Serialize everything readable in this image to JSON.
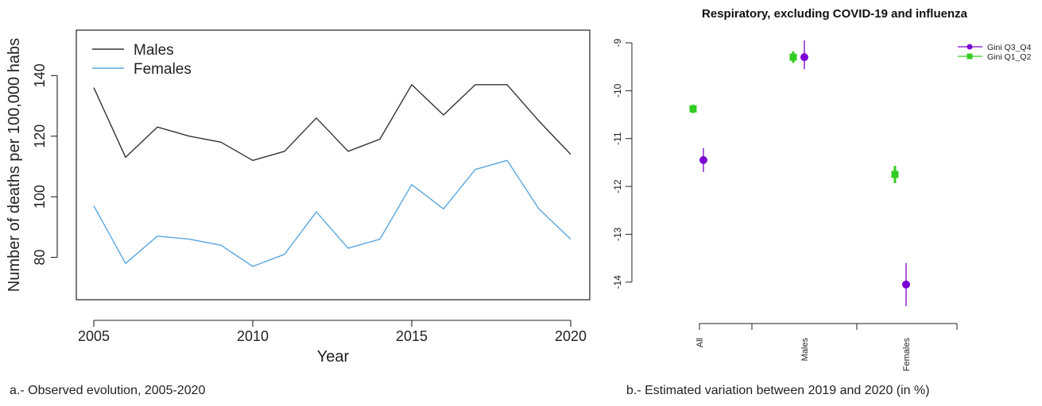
{
  "chart_data": [
    {
      "type": "line",
      "xlabel": "Year",
      "ylabel": "Number of deaths per 100,000 habs",
      "xlim": [
        2005,
        2020
      ],
      "ylim": [
        66,
        155
      ],
      "x_ticks": [
        "2005",
        "2010",
        "2015",
        "2020"
      ],
      "y_ticks": [
        "80",
        "100",
        "120",
        "140"
      ],
      "legend_position": "top-left",
      "x": [
        2005,
        2006,
        2007,
        2008,
        2009,
        2010,
        2011,
        2012,
        2013,
        2014,
        2015,
        2016,
        2017,
        2018,
        2019,
        2020
      ],
      "series": [
        {
          "name": "Males",
          "color": "#333333",
          "values": [
            136,
            113,
            123,
            120,
            118,
            112,
            115,
            126,
            115,
            119,
            137,
            127,
            137,
            137,
            125,
            114
          ]
        },
        {
          "name": "Females",
          "color": "#5aa7e0",
          "values": [
            97,
            78,
            87,
            86,
            84,
            77,
            81,
            95,
            83,
            86,
            104,
            96,
            109,
            112,
            96,
            86
          ]
        }
      ]
    },
    {
      "type": "scatter",
      "title": "Respiratory, excluding COVID-19 and influenza",
      "categories": [
        "All",
        "Males",
        "Females"
      ],
      "ylim": [
        -14.6,
        -8.9
      ],
      "y_ticks": [
        "-9",
        "-10",
        "-11",
        "-12",
        "-13",
        "-14"
      ],
      "legend_position": "top-right",
      "series": [
        {
          "name": "Gini Q3_Q4",
          "color": "#7b00d4",
          "marker": "circle",
          "values": [
            -11.45,
            -9.3,
            -14.05
          ],
          "ci_low": [
            -11.7,
            -9.55,
            -14.5
          ],
          "ci_high": [
            -11.2,
            -8.95,
            -13.6
          ]
        },
        {
          "name": "Gini Q1_Q2",
          "color": "#33cc22",
          "marker": "square",
          "values": [
            -10.38,
            -9.3,
            -11.75
          ],
          "ci_low": [
            -10.47,
            -9.42,
            -11.93
          ],
          "ci_high": [
            -10.29,
            -9.18,
            -11.57
          ]
        }
      ]
    }
  ],
  "captions": {
    "left": "a.- Observed evolution, 2005-2020",
    "right": "b.- Estimated variation between 2019 and 2020 (in %)"
  }
}
